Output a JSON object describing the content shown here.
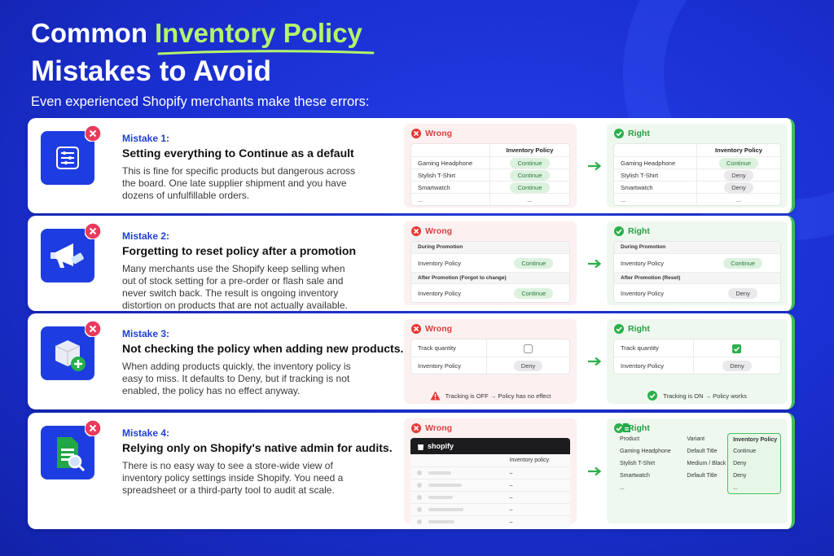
{
  "header": {
    "title_start": "Common",
    "title_highlight": "Inventory Policy",
    "title_line2": "Mistakes to Avoid",
    "subtitle": "Even experienced Shopify merchants make these errors:"
  },
  "mistakes": [
    {
      "label": "Mistake 1:",
      "heading": "Setting everything to Continue as a default",
      "body": "This is fine for specific products but dangerous across the board. One late supplier shipment and you have dozens of unfulfillable orders.",
      "wrong": {
        "label": "Wrong",
        "column": "Inventory Policy",
        "rows": [
          [
            "Gaming Headphone",
            "Continue"
          ],
          [
            "Stylish T-Shirt",
            "Continue"
          ],
          [
            "Smartwatch",
            "Continue"
          ],
          [
            "...",
            "..."
          ]
        ]
      },
      "right": {
        "label": "Right",
        "column": "Inventory Policy",
        "rows": [
          [
            "Gaming Headphone",
            "Continue"
          ],
          [
            "Stylish T-Shirt",
            "Deny"
          ],
          [
            "Smartwatch",
            "Deny"
          ],
          [
            "...",
            "..."
          ]
        ]
      }
    },
    {
      "label": "Mistake 2:",
      "heading": "Forgetting to reset policy after a promotion",
      "body": "Many merchants use the Shopify keep selling when out of stock setting for a pre-order or flash sale and never switch back. The result is ongoing inventory distortion on products that are not actually available.",
      "wrong": {
        "label": "Wrong",
        "sections": [
          {
            "title": "During Promotion",
            "field": "Inventory Policy",
            "value": "Continue"
          },
          {
            "title": "After Promotion (Forgot to change)",
            "field": "Inventory Policy",
            "value": "Continue"
          }
        ]
      },
      "right": {
        "label": "Right",
        "sections": [
          {
            "title": "During Promotion",
            "field": "Inventory Policy",
            "value": "Continue"
          },
          {
            "title": "After Promotion (Reset)",
            "field": "Inventory Policy",
            "value": "Deny"
          }
        ]
      }
    },
    {
      "label": "Mistake 3:",
      "heading": "Not checking the policy when adding new products.",
      "body": "When adding products quickly, the inventory policy is easy to miss. It defaults to Deny, but if tracking is not enabled, the policy has no effect anyway.",
      "wrong": {
        "label": "Wrong",
        "track": {
          "field": "Track quantity",
          "checked": false
        },
        "policy": {
          "field": "Inventory Policy",
          "value": "Deny"
        },
        "note": "Tracking is OFF → Policy has no effect"
      },
      "right": {
        "label": "Right",
        "track": {
          "field": "Track quantity",
          "checked": true
        },
        "policy": {
          "field": "Inventory Policy",
          "value": "Deny"
        },
        "note": "Tracking is ON → Policy works"
      }
    },
    {
      "label": "Mistake 4:",
      "heading": "Relying only on Shopify's native admin for audits.",
      "body": "There is no easy way to see a store-wide view of inventory policy settings inside Shopify. You need a spreadsheet or a third-party tool to audit at scale.",
      "wrong": {
        "label": "Wrong",
        "brand": "shopify",
        "column": "Inventory policy",
        "cells": [
          "–",
          "–",
          "–",
          "–",
          "–"
        ]
      },
      "right": {
        "label": "Right",
        "columns": [
          "Product",
          "Variant",
          "Inventory Policy"
        ],
        "table": [
          [
            "Gaming Headphone",
            "Default Title",
            "Continue"
          ],
          [
            "Stylish T-Shirt",
            "Medium / Black",
            "Deny"
          ],
          [
            "Smartwatch",
            "Default Title",
            "Deny"
          ],
          [
            "...",
            null,
            "..."
          ]
        ]
      }
    }
  ]
}
